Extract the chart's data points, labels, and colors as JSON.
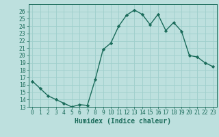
{
  "x": [
    0,
    1,
    2,
    3,
    4,
    5,
    6,
    7,
    8,
    9,
    10,
    11,
    12,
    13,
    14,
    15,
    16,
    17,
    18,
    19,
    20,
    21,
    22,
    23
  ],
  "y": [
    16.5,
    15.5,
    14.5,
    14.0,
    13.5,
    13.0,
    13.3,
    13.2,
    16.7,
    20.8,
    21.7,
    24.0,
    25.5,
    26.2,
    25.6,
    24.2,
    25.6,
    23.4,
    24.5,
    23.3,
    20.0,
    19.8,
    19.0,
    18.5
  ],
  "line_color": "#1a6b5a",
  "marker": "D",
  "marker_size": 2.2,
  "bg_color": "#bde0de",
  "grid_color": "#9fcfcc",
  "xlabel": "Humidex (Indice chaleur)",
  "ylim": [
    13,
    27
  ],
  "xlim": [
    -0.5,
    23.5
  ],
  "yticks": [
    13,
    14,
    15,
    16,
    17,
    18,
    19,
    20,
    21,
    22,
    23,
    24,
    25,
    26
  ],
  "xticks": [
    0,
    1,
    2,
    3,
    4,
    5,
    6,
    7,
    8,
    9,
    10,
    11,
    12,
    13,
    14,
    15,
    16,
    17,
    18,
    19,
    20,
    21,
    22,
    23
  ],
  "tick_color": "#1a6b5a",
  "xlabel_fontsize": 7,
  "tick_fontsize": 5.8,
  "line_width": 1.0
}
